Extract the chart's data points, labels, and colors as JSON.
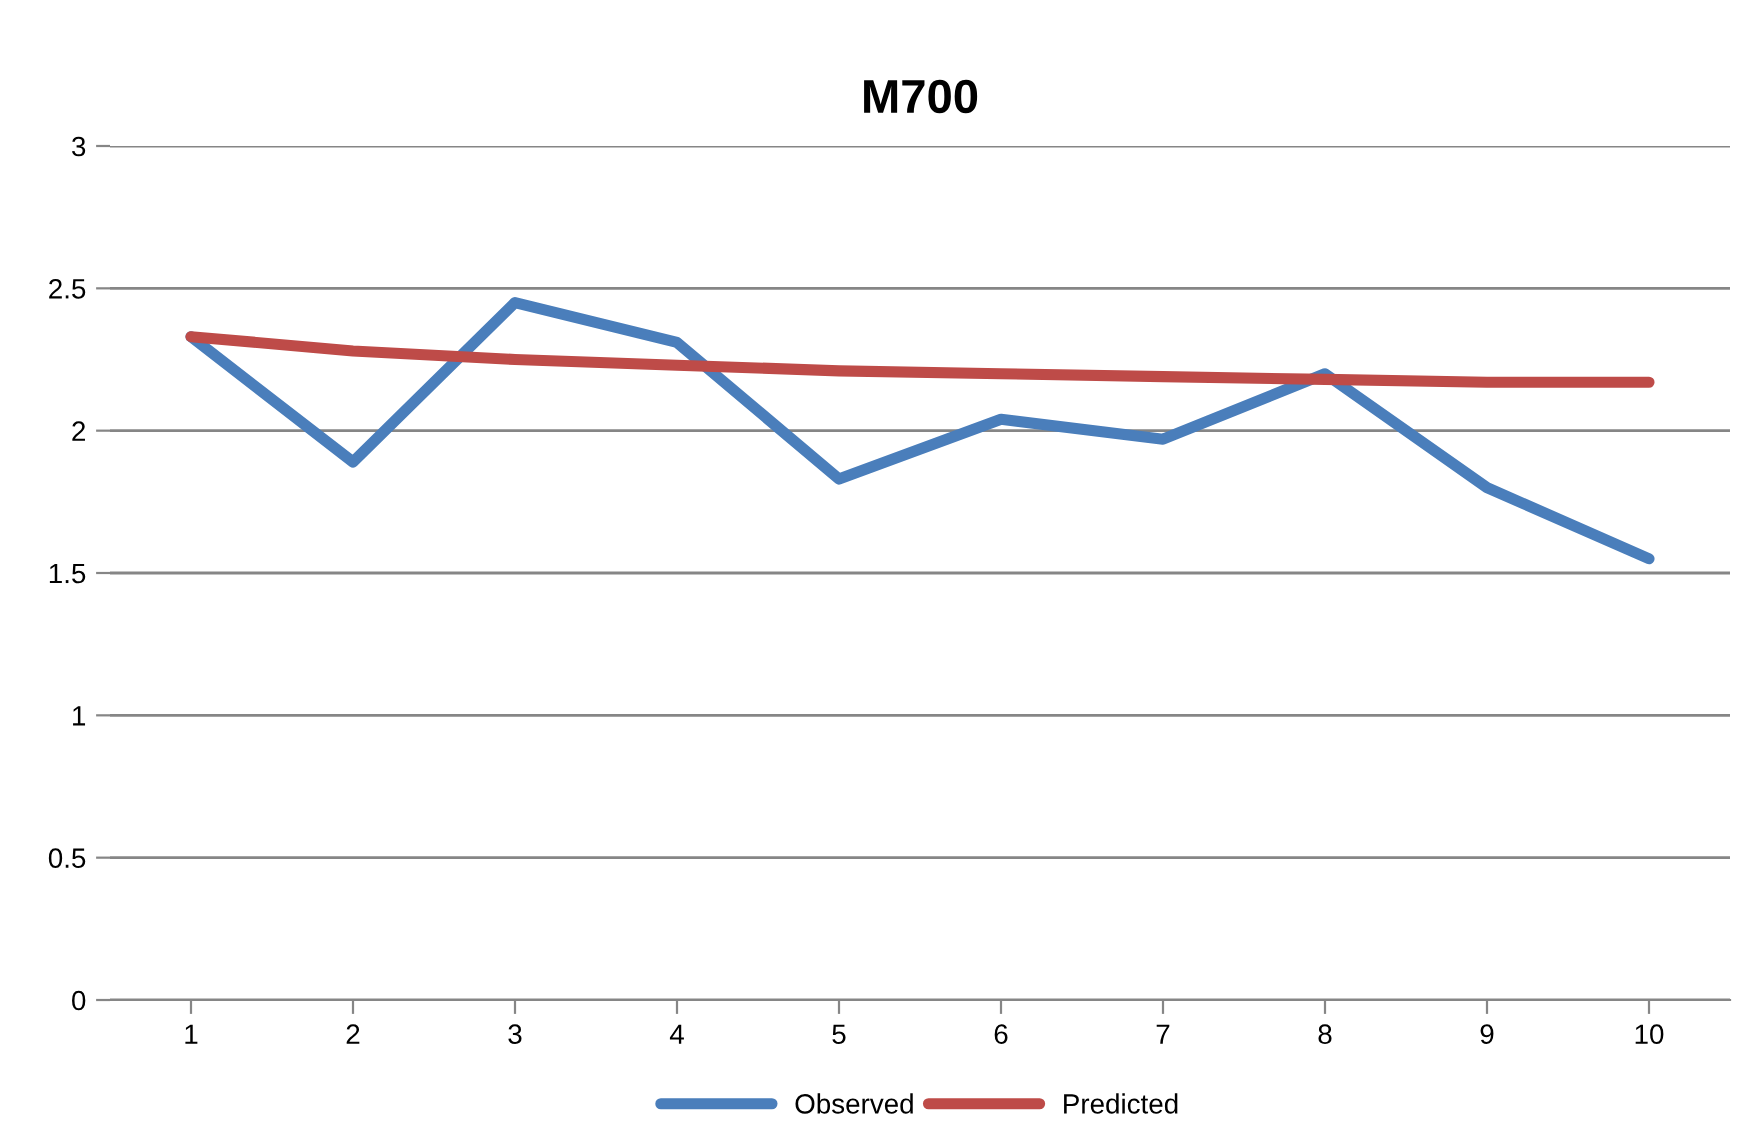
{
  "chart_data": {
    "type": "line",
    "title": "M700",
    "categories": [
      "1",
      "2",
      "3",
      "4",
      "5",
      "6",
      "7",
      "8",
      "9",
      "10"
    ],
    "series": [
      {
        "name": "Observed",
        "color": "#4a7ebb",
        "values": [
          2.33,
          1.89,
          2.45,
          2.31,
          1.83,
          2.04,
          1.97,
          2.2,
          1.8,
          1.55
        ]
      },
      {
        "name": "Predicted",
        "color": "#be4b48",
        "values": [
          2.33,
          2.28,
          2.25,
          2.23,
          2.21,
          2.2,
          2.19,
          2.18,
          2.17,
          2.17
        ]
      }
    ],
    "ylim": [
      0,
      3
    ],
    "yticks": [
      0,
      0.5,
      1,
      1.5,
      2,
      2.5,
      3
    ],
    "grid": "y",
    "legend": "bottom",
    "marker": "none",
    "line_style": "solid"
  }
}
